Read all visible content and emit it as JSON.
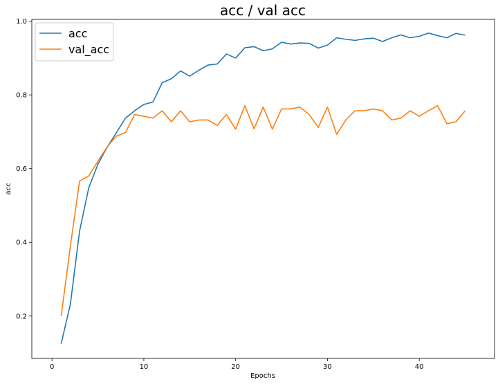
{
  "chart_data": {
    "type": "line",
    "title": "acc / val acc",
    "xlabel": "Epochs",
    "ylabel": "acc",
    "xlim": [
      -2.2,
      48.2
    ],
    "ylim": [
      0.085,
      1.005
    ],
    "xticks": [
      0,
      10,
      20,
      30,
      40
    ],
    "yticks": [
      0.2,
      0.4,
      0.6,
      0.8,
      1.0
    ],
    "xtick_labels": [
      "0",
      "10",
      "20",
      "30",
      "40"
    ],
    "ytick_labels": [
      "0.2",
      "0.4",
      "0.6",
      "0.8",
      "1.0"
    ],
    "grid": false,
    "legend_position": "top-left",
    "x": [
      1,
      2,
      3,
      4,
      5,
      6,
      7,
      8,
      9,
      10,
      11,
      12,
      13,
      14,
      15,
      16,
      17,
      18,
      19,
      20,
      21,
      22,
      23,
      24,
      25,
      26,
      27,
      28,
      29,
      30,
      31,
      32,
      33,
      34,
      35,
      36,
      37,
      38,
      39,
      40,
      41,
      42,
      43,
      44,
      45
    ],
    "series": [
      {
        "name": "acc",
        "color": "#1f77b4",
        "values": [
          0.125,
          0.232,
          0.43,
          0.548,
          0.612,
          0.658,
          0.697,
          0.737,
          0.757,
          0.774,
          0.781,
          0.833,
          0.844,
          0.865,
          0.851,
          0.867,
          0.881,
          0.884,
          0.911,
          0.9,
          0.928,
          0.931,
          0.92,
          0.925,
          0.943,
          0.938,
          0.941,
          0.94,
          0.927,
          0.935,
          0.955,
          0.951,
          0.948,
          0.952,
          0.954,
          0.945,
          0.955,
          0.963,
          0.955,
          0.959,
          0.968,
          0.961,
          0.955,
          0.967,
          0.962
        ]
      },
      {
        "name": "val_acc",
        "color": "#ff7f0e",
        "values": [
          0.2,
          0.39,
          0.566,
          0.58,
          0.62,
          0.659,
          0.688,
          0.698,
          0.747,
          0.742,
          0.737,
          0.757,
          0.727,
          0.757,
          0.727,
          0.732,
          0.732,
          0.717,
          0.747,
          0.707,
          0.771,
          0.708,
          0.767,
          0.707,
          0.762,
          0.762,
          0.767,
          0.747,
          0.712,
          0.767,
          0.693,
          0.732,
          0.757,
          0.757,
          0.762,
          0.757,
          0.732,
          0.737,
          0.757,
          0.742,
          0.757,
          0.771,
          0.722,
          0.727,
          0.757
        ]
      }
    ]
  }
}
